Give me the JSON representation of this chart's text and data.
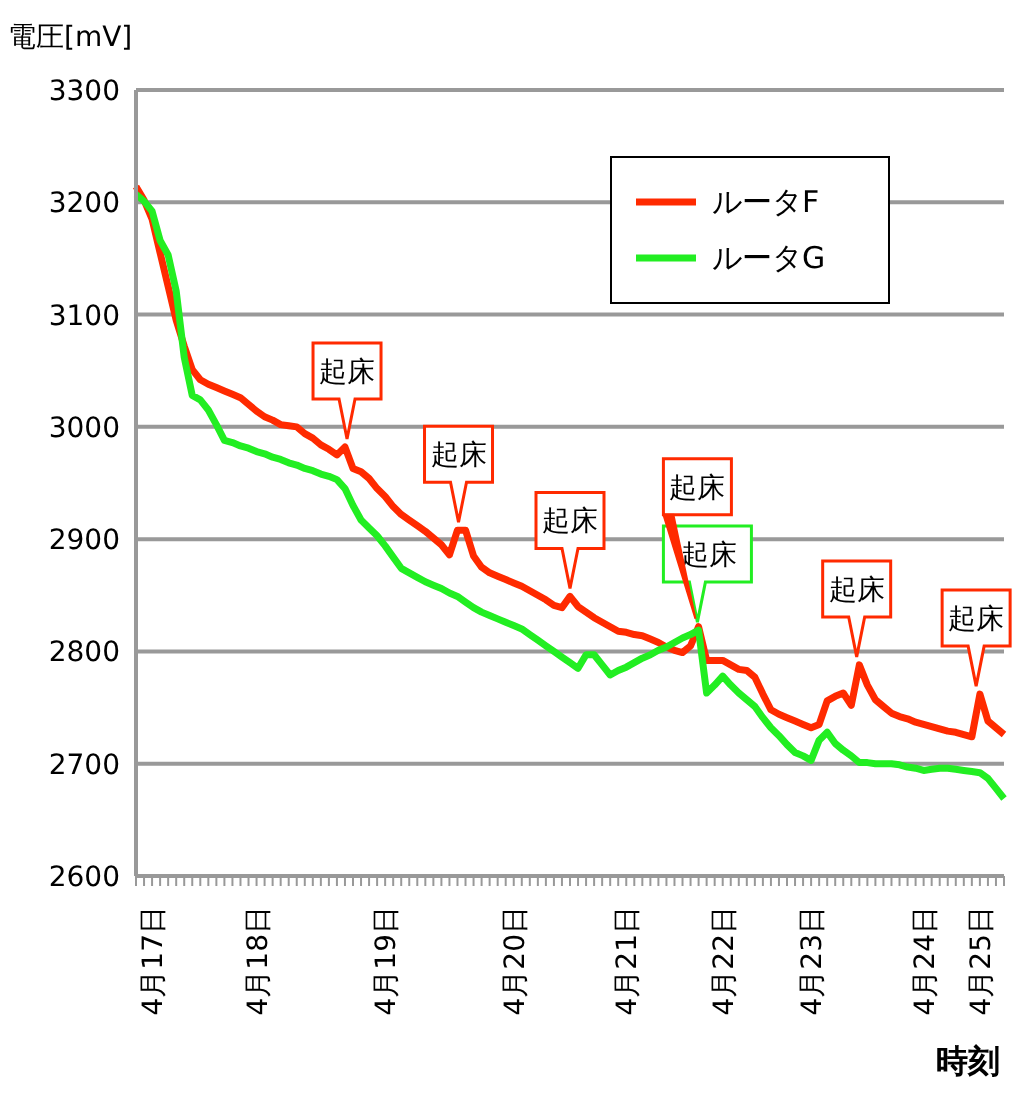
{
  "chart_data": {
    "type": "line",
    "ylabel": "電圧[mV]",
    "xlabel": "時刻",
    "categories": [
      null,
      null,
      "4月17日",
      null,
      null,
      null,
      null,
      null,
      null,
      null,
      null,
      null,
      null,
      null,
      null,
      "4月18日",
      null,
      null,
      null,
      null,
      null,
      null,
      null,
      null,
      null,
      null,
      null,
      null,
      null,
      null,
      null,
      "4月19日",
      null,
      null,
      null,
      null,
      null,
      null,
      null,
      null,
      null,
      null,
      null,
      null,
      null,
      null,
      null,
      "4月20日",
      null,
      null,
      null,
      null,
      null,
      null,
      null,
      null,
      null,
      null,
      null,
      null,
      null,
      "4月21日",
      null,
      null,
      null,
      null,
      null,
      null,
      null,
      null,
      null,
      null,
      null,
      "4月22日",
      null,
      null,
      null,
      null,
      null,
      null,
      null,
      null,
      null,
      null,
      "4月23日",
      null,
      null,
      null,
      null,
      null,
      null,
      null,
      null,
      null,
      null,
      null,
      null,
      null,
      "4月24日",
      null,
      null,
      null,
      null,
      null,
      null,
      "4月25日",
      null,
      null,
      null
    ],
    "series": [
      {
        "name": "ルータF",
        "color": "#ff2a00",
        "values": [
          3214,
          3202,
          3185,
          3155,
          3125,
          3095,
          3072,
          3051,
          3042,
          3038,
          3035,
          3032,
          3029,
          3026,
          3020,
          3014,
          3009,
          3006,
          3002,
          3001,
          3000,
          2994,
          2990,
          2984,
          2980,
          2975,
          2982,
          2963,
          2960,
          2954,
          2945,
          2938,
          2929,
          2922,
          2917,
          2912,
          2907,
          2901,
          2895,
          2886,
          2908,
          2908,
          2885,
          2875,
          2870,
          2867,
          2864,
          2861,
          2858,
          2854,
          2850,
          2846,
          2841,
          2839,
          2849,
          2840,
          2835,
          2830,
          2826,
          2822,
          2818,
          2817,
          2815,
          2814,
          2811,
          2808,
          2804,
          2801,
          2799,
          2805,
          2822,
          2792,
          2792,
          2792,
          2788,
          2784,
          2783,
          2777,
          2762,
          2748,
          2744,
          2741,
          2738,
          2735,
          2732,
          2735,
          2756,
          2760,
          2763,
          2752,
          2788,
          2770,
          2757,
          2751,
          2745,
          2742,
          2740,
          2737,
          2735,
          2733,
          2731,
          2729,
          2728,
          2726,
          2724,
          2762,
          2738,
          2732,
          2726
        ]
      },
      {
        "name": "ルータG",
        "color": "#22ee22",
        "values": [
          3207,
          3201,
          3192,
          3166,
          3153,
          3121,
          3062,
          3028,
          3024,
          3015,
          3002,
          2988,
          2986,
          2983,
          2981,
          2978,
          2976,
          2973,
          2971,
          2968,
          2966,
          2963,
          2961,
          2958,
          2956,
          2953,
          2945,
          2930,
          2917,
          2910,
          2903,
          2894,
          2884,
          2874,
          2870,
          2866,
          2862,
          2859,
          2856,
          2852,
          2849,
          2844,
          2839,
          2835,
          2832,
          2829,
          2826,
          2823,
          2820,
          2815,
          2810,
          2805,
          2800,
          2795,
          2790,
          2785,
          2797,
          2797,
          2788,
          2779,
          2783,
          2786,
          2790,
          2794,
          2797,
          2801,
          2804,
          2808,
          2812,
          2815,
          2819,
          2763,
          2770,
          2778,
          2770,
          2763,
          2757,
          2751,
          2741,
          2732,
          2725,
          2717,
          2710,
          2707,
          2703,
          2721,
          2728,
          2718,
          2712,
          2707,
          2701,
          2701,
          2700,
          2700,
          2700,
          2699,
          2697,
          2696,
          2694,
          2695,
          2696,
          2696,
          2695,
          2694,
          2693,
          2692,
          2687,
          2678,
          2669
        ]
      }
    ],
    "annotations": [
      {
        "text": "起床",
        "y": 2982
      },
      {
        "text": "起床",
        "y": 2908
      },
      {
        "text": "起床",
        "y": 2849
      },
      {
        "text": "起床",
        "y": 2822
      },
      {
        "text": "起床",
        "y": 2819
      },
      {
        "text": "起床",
        "y": 2788
      },
      {
        "text": "起床",
        "y": 2762
      }
    ],
    "ylim": [
      2600,
      3300
    ],
    "yticks": [
      2600,
      2700,
      2800,
      2900,
      3000,
      3100,
      3200,
      3300
    ],
    "grid": "y",
    "legend": "top right",
    "marker": "none",
    "line_style": "solid"
  }
}
